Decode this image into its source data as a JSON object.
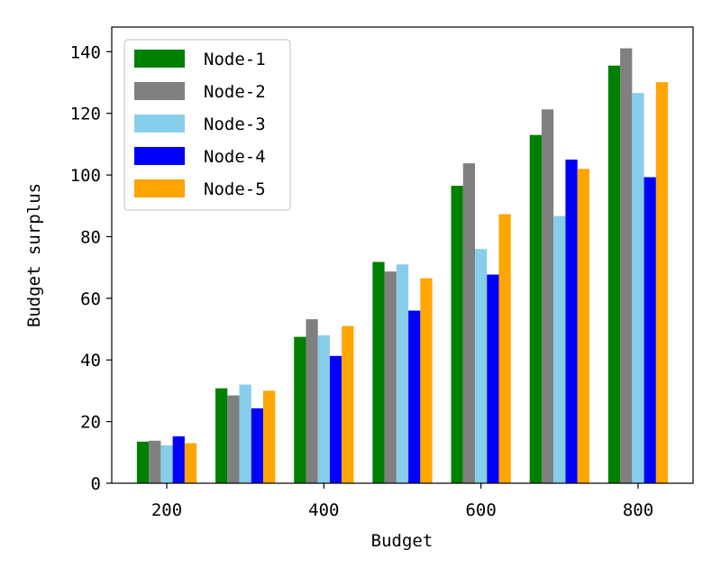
{
  "chart_data": {
    "type": "bar",
    "title": "",
    "xlabel": "Budget",
    "ylabel": "Budget surplus",
    "x": [
      200,
      300,
      400,
      500,
      600,
      700,
      800
    ],
    "x_ticks": [
      200,
      400,
      600,
      800
    ],
    "xlim": [
      130,
      870
    ],
    "ylim": [
      0,
      148
    ],
    "y_ticks": [
      0,
      20,
      40,
      60,
      80,
      100,
      120,
      140
    ],
    "grid": false,
    "legend_position": "upper-left",
    "series": [
      {
        "name": "Node-1",
        "color": "#008000",
        "values": [
          13.5,
          30.8,
          47.5,
          71.8,
          96.5,
          113.0,
          135.5
        ]
      },
      {
        "name": "Node-2",
        "color": "#808080",
        "values": [
          13.8,
          28.5,
          53.2,
          68.7,
          103.8,
          121.3,
          141.1
        ]
      },
      {
        "name": "Node-3",
        "color": "#87CEEB",
        "values": [
          12.3,
          32.0,
          48.0,
          71.0,
          76.0,
          86.7,
          126.6
        ]
      },
      {
        "name": "Node-4",
        "color": "#0000FF",
        "values": [
          15.2,
          24.3,
          41.3,
          56.0,
          67.7,
          105.0,
          99.3
        ]
      },
      {
        "name": "Node-5",
        "color": "#FFA500",
        "values": [
          13.0,
          30.0,
          51.0,
          66.5,
          87.3,
          102.0,
          130.1
        ]
      }
    ]
  }
}
